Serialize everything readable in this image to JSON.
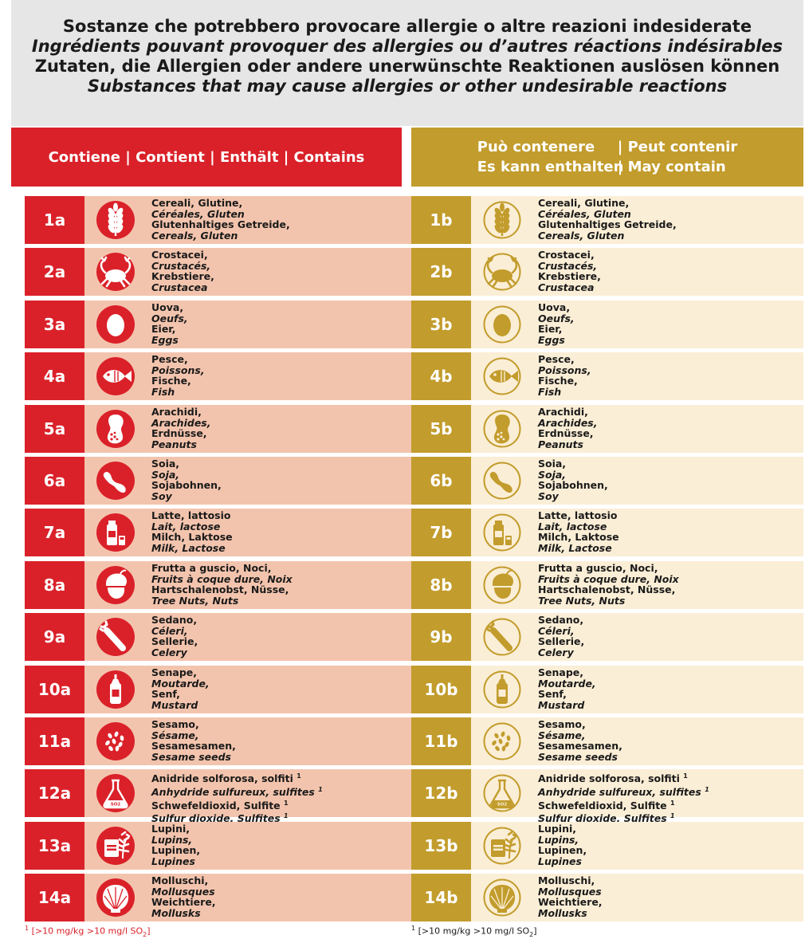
{
  "header": {
    "line1": "Sostanze che potrebbero provocare allergie o altre reazioni indesiderate",
    "line2": "Ingrédients pouvant provoquer des allergies ou d’autres réactions indésirables",
    "line3": "Zutaten, die Allergien oder andere unerwünschte Reaktionen auslösen können",
    "line4": "Substances that may cause allergies or other undesirable reactions"
  },
  "columns": {
    "contains": "Contiene | Contient | Enthält | Contains",
    "may_contain_r1a": "Può contenere",
    "may_contain_r1b": "| Peut contenir",
    "may_contain_r2a": "Es kann enthalten",
    "may_contain_r2b": "| May contain"
  },
  "colors": {
    "red": "#da2129",
    "gold": "#c29c2c",
    "red_panel": "#f3c4ad",
    "gold_panel": "#fbeed6"
  },
  "allergens": [
    {
      "num": "1",
      "icon": "wheat-icon",
      "it": "Cereali, Glutine,",
      "fr": "Céréales, Gluten",
      "de": "Glutenhaltiges Getreide,",
      "en": "Cereals, Gluten"
    },
    {
      "num": "2",
      "icon": "crab-icon",
      "it": "Crostacei,",
      "fr": "Crustacés,",
      "de": "Krebstiere,",
      "en": "Crustacea"
    },
    {
      "num": "3",
      "icon": "egg-icon",
      "it": "Uova,",
      "fr": "Oeufs,",
      "de": "Eier,",
      "en": "Eggs"
    },
    {
      "num": "4",
      "icon": "fish-icon",
      "it": "Pesce,",
      "fr": "Poissons,",
      "de": "Fische,",
      "en": "Fish"
    },
    {
      "num": "5",
      "icon": "peanut-icon",
      "it": "Arachidi,",
      "fr": "Arachides,",
      "de": "Erdnüsse,",
      "en": "Peanuts"
    },
    {
      "num": "6",
      "icon": "soybean-icon",
      "it": "Soia,",
      "fr": "Soja,",
      "de": "Sojabohnen,",
      "en": "Soy"
    },
    {
      "num": "7",
      "icon": "milk-icon",
      "it": "Latte, lattosio",
      "fr": "Lait, lactose",
      "de": "Milch, Laktose",
      "en": "Milk, Lactose"
    },
    {
      "num": "8",
      "icon": "nut-icon",
      "it": "Frutta a guscio, Noci,",
      "fr": "Fruits à coque dure, Noix",
      "de": "Hartschalenobst, Nüsse,",
      "en": "Tree Nuts, Nuts"
    },
    {
      "num": "9",
      "icon": "celery-icon",
      "it": "Sedano,",
      "fr": "Céleri,",
      "de": "Sellerie,",
      "en": "Celery"
    },
    {
      "num": "10",
      "icon": "mustard-icon",
      "it": "Senape,",
      "fr": "Moutarde,",
      "de": "Senf,",
      "en": "Mustard"
    },
    {
      "num": "11",
      "icon": "sesame-icon",
      "it": "Sesamo,",
      "fr": "Sésame,",
      "de": "Sesamesamen,",
      "en": "Sesame seeds"
    },
    {
      "num": "12",
      "icon": "sulphite-icon",
      "it": "Anidride solforosa, solfiti",
      "fr": "Anhydride sulfureux, sulfites",
      "de": "Schwefeldioxid, Sulfite",
      "en": "Sulfur dioxide, Sulfites",
      "sup": "1"
    },
    {
      "num": "13",
      "icon": "lupin-icon",
      "it": "Lupini,",
      "fr": "Lupins,",
      "de": "Lupinen,",
      "en": "Lupines"
    },
    {
      "num": "14",
      "icon": "shell-icon",
      "it": "Molluschi,",
      "fr": "Mollusques",
      "de": "Weichtiere,",
      "en": "Mollusks"
    }
  ],
  "footnote": {
    "mark": "1",
    "text": "[>10 mg/kg >10 mg/l SO",
    "sub": "2",
    "end": "]"
  },
  "so2_label": "SO2"
}
